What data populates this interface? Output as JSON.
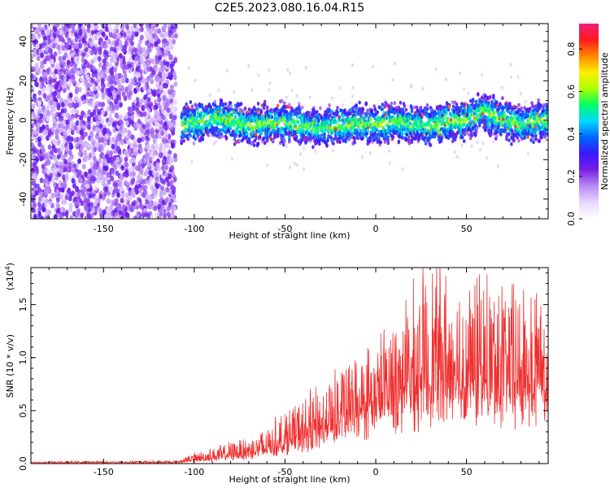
{
  "title": "C2E5.2023.080.16.04.R15",
  "colors": {
    "signal_line": "#f03030",
    "noise_purple": "#7a1fe6",
    "colormap": [
      "#ffffff",
      "#e8d8ff",
      "#b98cf5",
      "#7a1fe6",
      "#3a16ff",
      "#0066ff",
      "#00d8ff",
      "#00ff66",
      "#aaff00",
      "#ffee00",
      "#ff8800",
      "#ff1a1a",
      "#ee1f7a"
    ]
  },
  "chart_data": [
    {
      "type": "heatmap",
      "xlabel": "Height of straight line (km)",
      "ylabel": "Frequency (Hz)",
      "xlim": [
        -190,
        95
      ],
      "ylim": [
        -50,
        49
      ],
      "xticks": [
        -150,
        -100,
        -50,
        0,
        50
      ],
      "yticks": [
        -40,
        -20,
        0,
        20,
        40
      ],
      "noise_region_x": [
        -190,
        -110
      ],
      "signal_band_start_x": -107,
      "signal_band_center": [
        [
          -107,
          -3
        ],
        [
          -100,
          -1
        ],
        [
          -90,
          1
        ],
        [
          -80,
          0
        ],
        [
          -70,
          -3
        ],
        [
          -60,
          -2
        ],
        [
          -50,
          -1
        ],
        [
          -40,
          -3
        ],
        [
          -30,
          -4
        ],
        [
          -20,
          -3
        ],
        [
          -10,
          -2
        ],
        [
          0,
          -2
        ],
        [
          10,
          -1
        ],
        [
          20,
          -2
        ],
        [
          30,
          -3
        ],
        [
          40,
          -1
        ],
        [
          50,
          0
        ],
        [
          60,
          4
        ],
        [
          70,
          0
        ],
        [
          80,
          -2
        ],
        [
          95,
          0
        ]
      ],
      "colorbar": {
        "label": "Normalized spectral amplitude",
        "range": [
          0,
          0.92
        ],
        "ticks": [
          "0.0",
          "0.2",
          "0.4",
          "0.6",
          "0.8"
        ]
      }
    },
    {
      "type": "line",
      "xlabel": "Height of straight line (km)",
      "ylabel": "SNR (10 * v/v)",
      "multiplier": "(x10",
      "multiplier_exp": "4",
      "multiplier_close": ")",
      "xlim": [
        -190,
        95
      ],
      "ylim": [
        0,
        1.85
      ],
      "xticks": [
        -150,
        -100,
        -50,
        0,
        50
      ],
      "yticks": [
        "0.0",
        "0.5",
        "1.0",
        "1.5"
      ],
      "series": [
        {
          "envelope_x": [
            -190,
            -110,
            -100,
            -90,
            -80,
            -70,
            -60,
            -50,
            -40,
            -30,
            -20,
            -10,
            0,
            10,
            20,
            30,
            40,
            50,
            60,
            70,
            80,
            95
          ],
          "envelope_base": [
            0.01,
            0.01,
            0.03,
            0.05,
            0.07,
            0.09,
            0.12,
            0.18,
            0.24,
            0.32,
            0.42,
            0.52,
            0.58,
            0.68,
            0.72,
            0.78,
            0.82,
            0.82,
            0.8,
            0.8,
            0.78,
            0.78
          ],
          "envelope_peak": [
            0.02,
            0.03,
            0.1,
            0.15,
            0.2,
            0.26,
            0.35,
            0.5,
            0.6,
            0.72,
            0.9,
            0.98,
            1.1,
            1.4,
            1.55,
            1.85,
            1.75,
            1.65,
            1.7,
            1.7,
            1.6,
            1.72
          ]
        }
      ]
    }
  ]
}
